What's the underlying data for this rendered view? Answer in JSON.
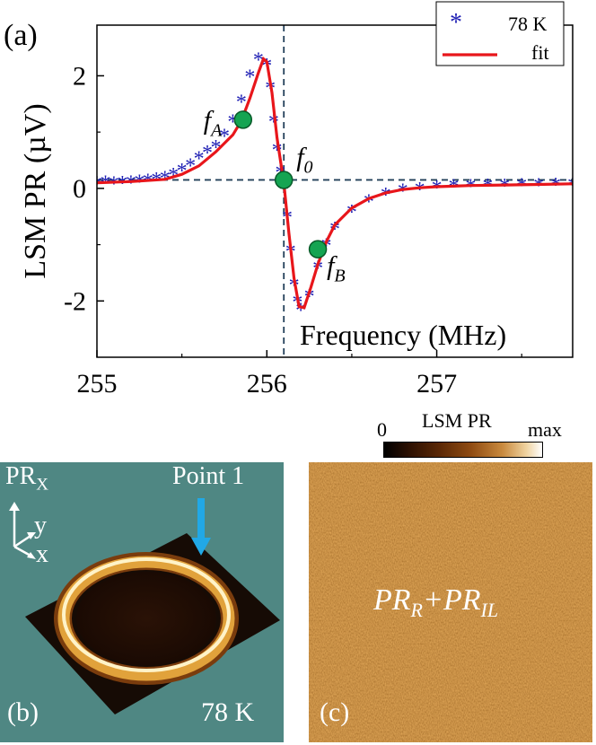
{
  "figure": {
    "panel_a_label": "(a)",
    "panel_b_label": "(b)",
    "panel_c_label": "(c)",
    "panel_b": {
      "axis_label": "PR",
      "axis_label_sub": "X",
      "y_label": "y",
      "x_label": "x",
      "point_label": "Point 1",
      "temperature": "78 K"
    },
    "panel_c": {
      "colorbar_title": "LSM PR",
      "colorbar_min": "0",
      "colorbar_max": "max",
      "overlay_main1": "PR",
      "overlay_sub1": "R",
      "overlay_plus": "+",
      "overlay_main2": "PR",
      "overlay_sub2": "IL"
    }
  },
  "chart_data": {
    "type": "scatter",
    "ylabel": "LSM PR (µV)",
    "xlabel": "Frequency (MHz)",
    "xlim": [
      255.0,
      257.8
    ],
    "ylim": [
      -3.0,
      2.9
    ],
    "xticks": [
      255,
      256,
      257
    ],
    "yticks": [
      -2,
      0,
      2
    ],
    "xtick_labels": [
      "255",
      "256",
      "257"
    ],
    "ytick_labels": [
      "-2",
      "0",
      "2"
    ],
    "legend": {
      "position": "top-right",
      "entries": [
        "78 K",
        "fit"
      ]
    },
    "series": [
      {
        "name": "78 K",
        "marker": "*",
        "color": "#1f1fb4",
        "x": [
          255.0,
          255.05,
          255.1,
          255.15,
          255.2,
          255.25,
          255.3,
          255.35,
          255.4,
          255.45,
          255.5,
          255.55,
          255.6,
          255.65,
          255.7,
          255.75,
          255.8,
          255.85,
          255.9,
          255.95,
          256.0,
          256.02,
          256.04,
          256.06,
          256.08,
          256.1,
          256.12,
          256.14,
          256.16,
          256.18,
          256.2,
          256.25,
          256.3,
          256.35,
          256.4,
          256.5,
          256.6,
          256.7,
          256.8,
          256.9,
          257.0,
          257.1,
          257.2,
          257.3,
          257.4,
          257.5,
          257.6,
          257.7,
          257.8
        ],
        "y": [
          0.1,
          0.12,
          0.1,
          0.11,
          0.12,
          0.13,
          0.15,
          0.17,
          0.2,
          0.25,
          0.33,
          0.42,
          0.55,
          0.65,
          0.75,
          0.95,
          1.2,
          1.55,
          2.0,
          2.3,
          2.2,
          1.8,
          1.2,
          0.7,
          0.3,
          0.0,
          -0.5,
          -1.1,
          -1.7,
          -2.0,
          -2.15,
          -1.9,
          -1.4,
          -1.0,
          -0.7,
          -0.4,
          -0.22,
          -0.1,
          -0.03,
          0.0,
          0.03,
          0.05,
          0.05,
          0.06,
          0.06,
          0.07,
          0.07,
          0.08,
          0.08
        ]
      },
      {
        "name": "fit",
        "color": "#ff0000",
        "x": [
          255.0,
          255.2,
          255.4,
          255.5,
          255.6,
          255.7,
          255.8,
          255.85,
          255.9,
          255.95,
          255.98,
          256.0,
          256.03,
          256.06,
          256.1,
          256.13,
          256.16,
          256.19,
          256.22,
          256.26,
          256.3,
          256.35,
          256.4,
          256.5,
          256.6,
          256.7,
          256.8,
          256.9,
          257.0,
          257.2,
          257.4,
          257.6,
          257.8
        ],
        "y": [
          0.1,
          0.12,
          0.16,
          0.25,
          0.4,
          0.65,
          0.95,
          1.2,
          1.6,
          2.05,
          2.3,
          2.25,
          1.7,
          0.9,
          0.1,
          -0.8,
          -1.6,
          -2.1,
          -2.12,
          -1.75,
          -1.35,
          -0.95,
          -0.65,
          -0.35,
          -0.18,
          -0.08,
          -0.02,
          0.01,
          0.03,
          0.05,
          0.06,
          0.07,
          0.08
        ]
      }
    ],
    "markers": [
      {
        "label": "f",
        "sub": "A",
        "x": 255.86,
        "y": 1.22
      },
      {
        "label": "f",
        "sub": "0",
        "x": 256.1,
        "y": 0.15
      },
      {
        "label": "f",
        "sub": "B",
        "x": 256.3,
        "y": -1.08
      }
    ],
    "reference_lines": {
      "vertical_x": 256.1,
      "horizontal_y": 0.15
    }
  }
}
